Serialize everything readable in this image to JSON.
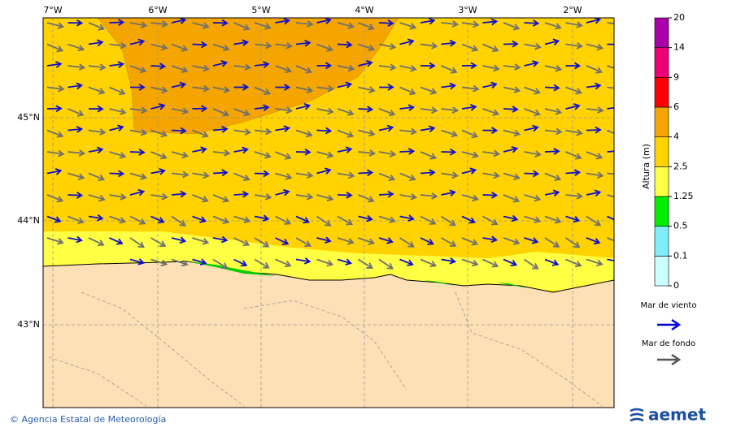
{
  "map": {
    "lon_labels": [
      "7°W",
      "6°W",
      "5°W",
      "4°W",
      "3°W",
      "2°W"
    ],
    "lat_labels": [
      "45°N",
      "44°N",
      "43°N"
    ]
  },
  "colorbar": {
    "title": "Altura (m)",
    "levels": [
      "0",
      "0.1",
      "0.5",
      "1.25",
      "2.5",
      "4",
      "6",
      "9",
      "14",
      "20"
    ],
    "colors": [
      "#ccffff",
      "#80eef8",
      "#00ee00",
      "#ffff44",
      "#ffd200",
      "#f5a500",
      "#ff0000",
      "#ee0077",
      "#aa00aa"
    ]
  },
  "legend": {
    "wind_sea": "Mar de viento",
    "swell": "Mar de fondo"
  },
  "footer": {
    "credit": "© Agencia Estatal de Meteorología",
    "logo": "aemet"
  }
}
